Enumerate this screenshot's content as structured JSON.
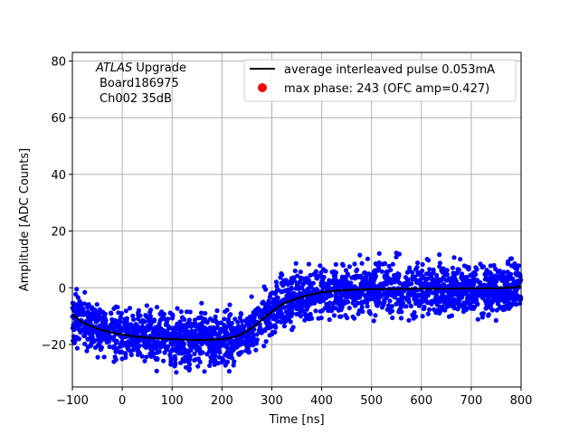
{
  "chart_data": {
    "type": "scatter",
    "xlabel": "Time [ns]",
    "ylabel": "Amplitude [ADC Counts]",
    "xlim": [
      -100,
      800
    ],
    "ylim": [
      -35,
      83
    ],
    "xticks": [
      -100,
      0,
      100,
      200,
      300,
      400,
      500,
      600,
      700,
      800
    ],
    "yticks": [
      -20,
      0,
      20,
      40,
      60,
      80
    ],
    "xtick_labels": [
      "−100",
      "0",
      "100",
      "200",
      "300",
      "400",
      "500",
      "600",
      "700",
      "800"
    ],
    "ytick_labels": [
      "−20",
      "0",
      "20",
      "40",
      "60",
      "80"
    ],
    "grid": true,
    "legend_position": "top-right",
    "annotation": {
      "line1_italic": "ATLAS",
      "line1_rest": " Upgrade",
      "line2": "Board186975",
      "line3": "Ch002 35dB"
    },
    "series": [
      {
        "name": "average interleaved pulse 0.053mA",
        "kind": "line",
        "color": "#000000",
        "x": [
          -100,
          -80,
          -60,
          -40,
          -20,
          0,
          25,
          50,
          75,
          100,
          125,
          150,
          175,
          200,
          215,
          230,
          245,
          260,
          275,
          290,
          305,
          320,
          340,
          360,
          380,
          400,
          425,
          450,
          475,
          500,
          550,
          600,
          650,
          700,
          750,
          790,
          800
        ],
        "y": [
          -9.5,
          -12.2,
          -13.8,
          -15.0,
          -15.8,
          -16.5,
          -17.2,
          -17.6,
          -17.9,
          -18.1,
          -18.3,
          -18.4,
          -18.4,
          -18.1,
          -17.8,
          -17.1,
          -15.9,
          -14.2,
          -12.1,
          -9.9,
          -7.8,
          -5.9,
          -4.4,
          -3.2,
          -2.3,
          -1.6,
          -1.1,
          -0.8,
          -0.6,
          -0.5,
          -0.4,
          -0.3,
          -0.3,
          -0.2,
          -0.2,
          0.2,
          0.6
        ]
      },
      {
        "name": "max phase: 243 (OFC amp=0.427)",
        "kind": "marker",
        "color": "#ff0000"
      },
      {
        "name": "",
        "kind": "scatter-band",
        "color": "#0000ff",
        "description_of_spread_adc": 4.5
      }
    ]
  }
}
